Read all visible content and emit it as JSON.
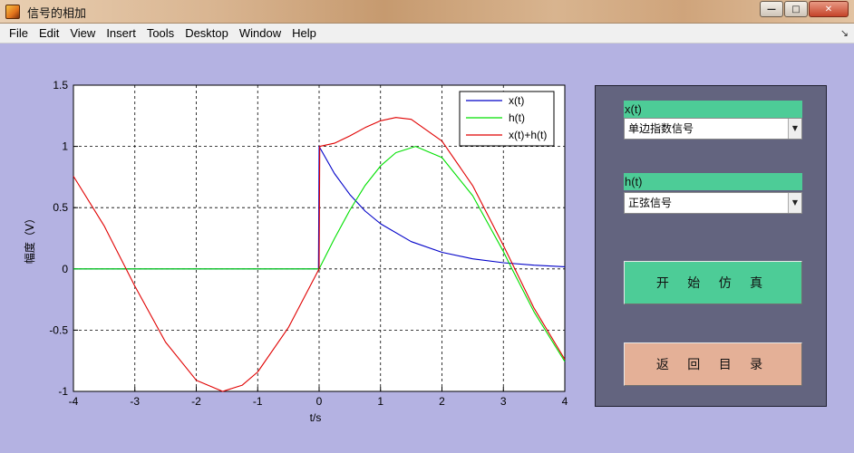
{
  "window": {
    "title": "信号的相加"
  },
  "menu": [
    "File",
    "Edit",
    "View",
    "Insert",
    "Tools",
    "Desktop",
    "Window",
    "Help"
  ],
  "panel": {
    "x_label": "x(t)",
    "x_selected": "单边指数信号",
    "h_label": "h(t)",
    "h_selected": "正弦信号",
    "simulate_button": "开 始 仿 真",
    "return_button": "返 回 目 录"
  },
  "colors": {
    "x": "#0000c8",
    "h": "#00e000",
    "sum": "#e00000"
  },
  "chart_data": {
    "type": "line",
    "xlabel": "t/s",
    "ylabel": "幅度（V）",
    "xlim": [
      -4,
      4
    ],
    "ylim": [
      -1,
      1.5
    ],
    "xticks": [
      -4,
      -3,
      -2,
      -1,
      0,
      1,
      2,
      3,
      4
    ],
    "yticks": [
      -1,
      -0.5,
      0,
      0.5,
      1,
      1.5
    ],
    "xtick_labels": [
      "-4",
      "-3",
      "-2",
      "-1",
      "0",
      "1",
      "2",
      "3",
      "4"
    ],
    "ytick_labels": [
      "-1",
      "-0.5",
      "0",
      "0.5",
      "1",
      "1.5"
    ],
    "grid": true,
    "legend_position": "top-right",
    "series": [
      {
        "name": "x(t)",
        "color": "#0000c8",
        "x": [
          -4,
          -0.01,
          0,
          0.25,
          0.5,
          0.75,
          1,
          1.5,
          2,
          2.5,
          3,
          3.5,
          4
        ],
        "y": [
          0,
          0,
          1,
          0.779,
          0.607,
          0.472,
          0.368,
          0.223,
          0.135,
          0.082,
          0.05,
          0.03,
          0.018
        ]
      },
      {
        "name": "h(t)",
        "color": "#00e000",
        "x": [
          -4,
          -0.01,
          0,
          0.25,
          0.5,
          0.75,
          1,
          1.25,
          1.5708,
          2,
          2.5,
          3,
          3.14,
          3.5,
          4
        ],
        "y": [
          0,
          0,
          0,
          0.247,
          0.479,
          0.682,
          0.841,
          0.949,
          1.0,
          0.909,
          0.598,
          0.141,
          0.0,
          -0.351,
          -0.757
        ]
      },
      {
        "name": "x(t)+h(t)",
        "color": "#e00000",
        "x": [
          -4,
          -3.5,
          -3,
          -2.5,
          -2,
          -1.5708,
          -1.25,
          -1,
          -0.5,
          0,
          0.01,
          0.25,
          0.5,
          0.75,
          1,
          1.25,
          1.5,
          2,
          2.5,
          3,
          3.5,
          4
        ],
        "y": [
          0.757,
          0.351,
          -0.141,
          -0.598,
          -0.909,
          -1.0,
          -0.949,
          -0.841,
          -0.479,
          0,
          1.0,
          1.026,
          1.086,
          1.154,
          1.209,
          1.236,
          1.221,
          1.044,
          0.68,
          0.191,
          -0.321,
          -0.739
        ]
      }
    ]
  }
}
